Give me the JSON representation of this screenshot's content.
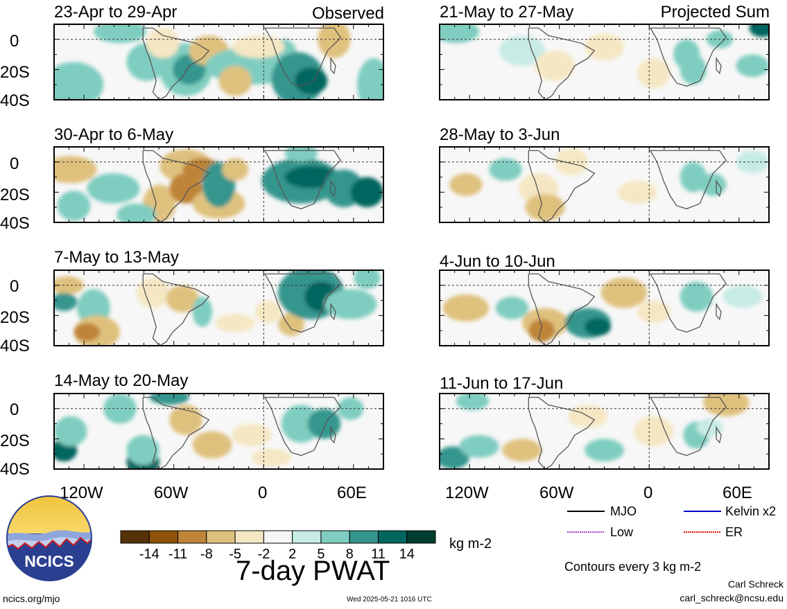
{
  "chart_data": [
    {
      "type": "heatmap",
      "column": "Observed",
      "panels": [
        {
          "title": "23-Apr to 29-Apr",
          "corner_label": "Observed"
        },
        {
          "title": "30-Apr to 6-May",
          "corner_label": ""
        },
        {
          "title": "7-May to 13-May",
          "corner_label": ""
        },
        {
          "title": "14-May to 20-May",
          "corner_label": ""
        }
      ],
      "x_ticks": [
        "120W",
        "60W",
        "0",
        "60E"
      ],
      "y_ticks": [
        "0",
        "20S",
        "40S"
      ],
      "xlim": [
        "140W",
        "80E"
      ],
      "ylim": [
        "40S",
        "10N"
      ]
    },
    {
      "type": "heatmap",
      "column": "Projected Sum",
      "panels": [
        {
          "title": "21-May to 27-May",
          "corner_label": "Projected Sum"
        },
        {
          "title": "28-May to 3-Jun",
          "corner_label": ""
        },
        {
          "title": "4-Jun to 10-Jun",
          "corner_label": ""
        },
        {
          "title": "11-Jun to 17-Jun",
          "corner_label": ""
        }
      ],
      "x_ticks": [
        "120W",
        "60W",
        "0",
        "60E"
      ],
      "y_ticks": [
        "0",
        "20S",
        "40S"
      ],
      "xlim": [
        "140W",
        "80E"
      ],
      "ylim": [
        "40S",
        "10N"
      ]
    }
  ],
  "colorbar": {
    "title": "7-day PWAT",
    "units": "kg m-2",
    "tick_labels": [
      "-14",
      "-11",
      "-8",
      "-5",
      "-2",
      "2",
      "5",
      "8",
      "11",
      "14"
    ],
    "colors": [
      "#553207",
      "#8c5309",
      "#be8438",
      "#dfc17e",
      "#f5e7c3",
      "#f5f5f5",
      "#c7ebe5",
      "#7fcdc0",
      "#35968e",
      "#01665e",
      "#003c30"
    ]
  },
  "line_legend": [
    {
      "label": "MJO",
      "color": "#000000",
      "style": "solid"
    },
    {
      "label": "Kelvin x2",
      "color": "#0000cc",
      "style": "solid"
    },
    {
      "label": "Low",
      "color": "#a040d0",
      "style": "dotted"
    },
    {
      "label": "ER",
      "color": "#dd1111",
      "style": "dotted"
    }
  ],
  "contour_note": "Contours every 3 kg m-2",
  "footer": {
    "site": "ncics.org/mjo",
    "timestamp": "Wed 2025-05-21 1016 UTC",
    "author": "Carl Schreck",
    "email": "carl_schreck@ncsu.edu"
  },
  "logo": {
    "text": "NCICS"
  }
}
